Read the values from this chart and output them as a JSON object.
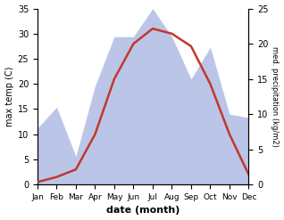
{
  "months": [
    "Jan",
    "Feb",
    "Mar",
    "Apr",
    "May",
    "Jun",
    "Jul",
    "Aug",
    "Sep",
    "Oct",
    "Nov",
    "Dec"
  ],
  "temperature": [
    0.5,
    1.5,
    3.0,
    10.0,
    21.0,
    28.0,
    31.0,
    30.0,
    27.5,
    20.0,
    10.0,
    2.0
  ],
  "precipitation": [
    8.0,
    11.0,
    4.0,
    14.0,
    21.0,
    21.0,
    25.0,
    21.0,
    15.0,
    19.5,
    10.0,
    9.5
  ],
  "temp_color": "#c0392b",
  "precip_fill_color": "#bbc5e8",
  "temp_ylim": [
    0,
    35
  ],
  "precip_ylim": [
    0,
    25
  ],
  "xlabel": "date (month)",
  "ylabel_left": "max temp (C)",
  "ylabel_right": "med. precipitation (kg/m2)",
  "bg_color": "#ffffff"
}
